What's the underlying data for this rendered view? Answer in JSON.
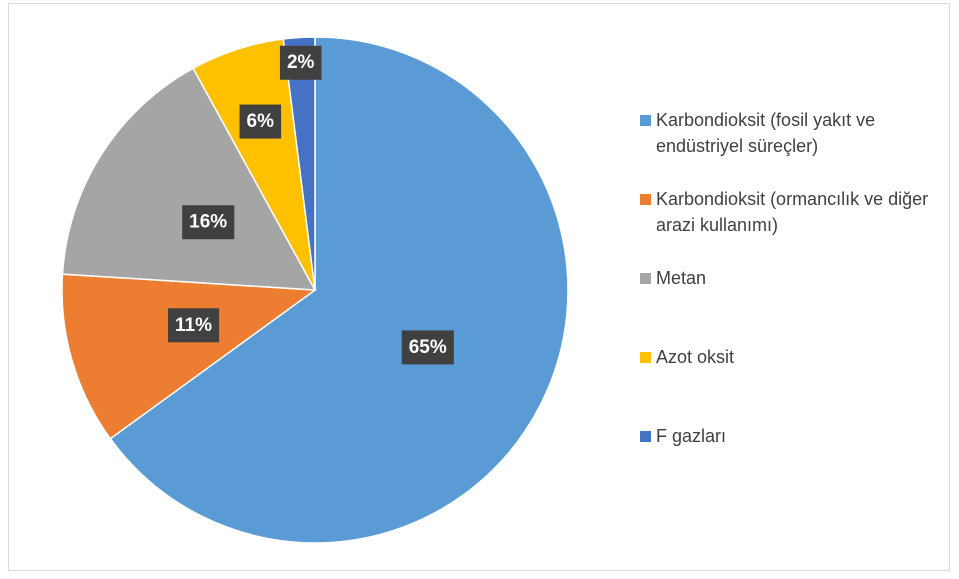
{
  "chart_data": {
    "type": "pie",
    "categories": [
      "Karbondioksit (fosil yakıt ve endüstriyel süreçler)",
      "Karbondioksit (ormancılık ve diğer arazi kullanımı)",
      "Metan",
      "Azot oksit",
      "F gazları"
    ],
    "values": [
      65,
      11,
      16,
      6,
      2
    ],
    "value_labels": [
      "65%",
      "11%",
      "16%",
      "6%",
      "2%"
    ],
    "colors": [
      "#5b9bd5",
      "#ed7d31",
      "#a5a5a5",
      "#ffc000",
      "#4472c4"
    ],
    "legend": "right"
  }
}
